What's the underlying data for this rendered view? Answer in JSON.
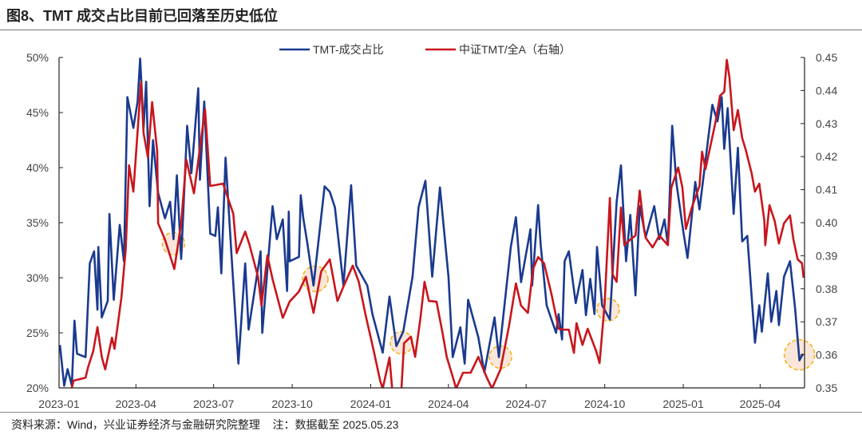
{
  "title": "图8、TMT 成交占比目前已回落至历史低位",
  "footer": "资料来源：Wind，兴业证券经济与金融研究院整理    注：数据截至 2025.05.23",
  "chart_data": {
    "type": "line",
    "title": "图8、TMT 成交占比目前已回落至历史低位",
    "x_unit": "days since 2023-01-01",
    "x_range": [
      0,
      873
    ],
    "x_ticks": [
      {
        "label": "2023-01",
        "day": 0
      },
      {
        "label": "2023-04",
        "day": 90
      },
      {
        "label": "2023-07",
        "day": 181
      },
      {
        "label": "2023-10",
        "day": 273
      },
      {
        "label": "2024-01",
        "day": 365
      },
      {
        "label": "2024-04",
        "day": 456
      },
      {
        "label": "2024-07",
        "day": 547
      },
      {
        "label": "2024-10",
        "day": 639
      },
      {
        "label": "2025-01",
        "day": 731
      },
      {
        "label": "2025-04",
        "day": 821
      }
    ],
    "y_left": {
      "range": [
        20,
        50
      ],
      "ticks": [
        "20%",
        "25%",
        "30%",
        "35%",
        "40%",
        "45%",
        "50%"
      ],
      "values": [
        20,
        25,
        30,
        35,
        40,
        45,
        50
      ]
    },
    "y_right": {
      "range": [
        0.35,
        0.45
      ],
      "ticks": [
        "0.35",
        "0.36",
        "0.37",
        "0.38",
        "0.39",
        "0.40",
        "0.41",
        "0.42",
        "0.43",
        "0.44",
        "0.45"
      ],
      "values": [
        0.35,
        0.36,
        0.37,
        0.38,
        0.39,
        0.4,
        0.41,
        0.42,
        0.43,
        0.44,
        0.45
      ]
    },
    "legend_position": "top-center",
    "series": [
      {
        "name": "TMT-成交占比",
        "axis": "left",
        "color": "#1a3a8f",
        "points": [
          [
            1,
            23.9
          ],
          [
            6,
            20.2
          ],
          [
            10,
            21.7
          ],
          [
            15,
            20.2
          ],
          [
            18,
            26.1
          ],
          [
            21,
            23.1
          ],
          [
            31,
            22.8
          ],
          [
            36,
            31.3
          ],
          [
            41,
            32.4
          ],
          [
            45,
            27.1
          ],
          [
            46,
            32.8
          ],
          [
            50,
            26.4
          ],
          [
            57,
            27.9
          ],
          [
            59,
            35.8
          ],
          [
            64,
            28.0
          ],
          [
            71,
            34.8
          ],
          [
            76,
            31.5
          ],
          [
            80,
            46.4
          ],
          [
            87,
            43.6
          ],
          [
            92,
            46.0
          ],
          [
            95,
            49.9
          ],
          [
            99,
            43.6
          ],
          [
            102,
            47.8
          ],
          [
            106,
            36.5
          ],
          [
            110,
            42.5
          ],
          [
            116,
            37.7
          ],
          [
            124,
            35.4
          ],
          [
            130,
            36.9
          ],
          [
            134,
            33.5
          ],
          [
            138,
            39.3
          ],
          [
            143,
            31.7
          ],
          [
            150,
            43.8
          ],
          [
            155,
            39.5
          ],
          [
            158,
            42.3
          ],
          [
            163,
            47.2
          ],
          [
            165,
            38.9
          ],
          [
            170,
            46.0
          ],
          [
            177,
            34.0
          ],
          [
            183,
            33.8
          ],
          [
            186,
            36.4
          ],
          [
            190,
            30.4
          ],
          [
            195,
            40.9
          ],
          [
            202,
            32.0
          ],
          [
            210,
            22.2
          ],
          [
            218,
            31.3
          ],
          [
            222,
            25.3
          ],
          [
            236,
            32.4
          ],
          [
            238,
            25.0
          ],
          [
            250,
            36.5
          ],
          [
            255,
            33.5
          ],
          [
            262,
            35.3
          ],
          [
            267,
            28.8
          ],
          [
            269,
            36.0
          ],
          [
            270,
            31.5
          ],
          [
            281,
            31.9
          ],
          [
            283,
            37.5
          ],
          [
            286,
            35.4
          ],
          [
            290,
            33.5
          ],
          [
            298,
            29.3
          ],
          [
            311,
            38.3
          ],
          [
            317,
            37.8
          ],
          [
            323,
            36.4
          ],
          [
            333,
            29.3
          ],
          [
            342,
            38.4
          ],
          [
            348,
            31.1
          ],
          [
            361,
            29.3
          ],
          [
            367,
            26.7
          ],
          [
            379,
            23.2
          ],
          [
            387,
            28.3
          ],
          [
            395,
            23.8
          ],
          [
            403,
            25.1
          ],
          [
            414,
            30.1
          ],
          [
            421,
            36.4
          ],
          [
            429,
            38.8
          ],
          [
            437,
            30.1
          ],
          [
            446,
            38.2
          ],
          [
            456,
            30.1
          ],
          [
            461,
            22.8
          ],
          [
            470,
            25.5
          ],
          [
            475,
            22.2
          ],
          [
            479,
            28.0
          ],
          [
            491,
            24.6
          ],
          [
            498,
            21.4
          ],
          [
            510,
            26.4
          ],
          [
            515,
            22.8
          ],
          [
            529,
            32.8
          ],
          [
            535,
            35.5
          ],
          [
            541,
            29.6
          ],
          [
            552,
            34.4
          ],
          [
            554,
            29.3
          ],
          [
            561,
            36.6
          ],
          [
            564,
            33.0
          ],
          [
            571,
            27.5
          ],
          [
            582,
            25.0
          ],
          [
            585,
            26.7
          ],
          [
            589,
            24.4
          ],
          [
            592,
            31.5
          ],
          [
            597,
            32.4
          ],
          [
            605,
            27.7
          ],
          [
            613,
            30.7
          ],
          [
            617,
            26.6
          ],
          [
            622,
            29.9
          ],
          [
            627,
            26.7
          ],
          [
            630,
            32.8
          ],
          [
            636,
            27.5
          ],
          [
            645,
            26.2
          ],
          [
            653,
            36.9
          ],
          [
            658,
            40.2
          ],
          [
            664,
            31.5
          ],
          [
            669,
            35.7
          ],
          [
            675,
            28.4
          ],
          [
            680,
            36.5
          ],
          [
            687,
            33.7
          ],
          [
            697,
            36.5
          ],
          [
            703,
            33.5
          ],
          [
            709,
            35.3
          ],
          [
            713,
            33.0
          ],
          [
            718,
            43.8
          ],
          [
            723,
            38.6
          ],
          [
            731,
            34.2
          ],
          [
            736,
            31.8
          ],
          [
            745,
            38.7
          ],
          [
            750,
            36.2
          ],
          [
            765,
            45.7
          ],
          [
            771,
            44.2
          ],
          [
            776,
            46.4
          ],
          [
            779,
            41.7
          ],
          [
            783,
            45.4
          ],
          [
            790,
            35.8
          ],
          [
            795,
            41.8
          ],
          [
            800,
            33.3
          ],
          [
            806,
            33.8
          ],
          [
            815,
            24.1
          ],
          [
            820,
            27.5
          ],
          [
            823,
            25.1
          ],
          [
            830,
            30.4
          ],
          [
            834,
            26.0
          ],
          [
            840,
            28.8
          ],
          [
            843,
            25.7
          ],
          [
            849,
            30.1
          ],
          [
            856,
            31.5
          ],
          [
            862,
            27.2
          ],
          [
            867,
            22.5
          ],
          [
            871,
            23.1
          ]
        ]
      },
      {
        "name": "中证TMT/全A（右轴）",
        "axis": "right",
        "color": "#c8161d",
        "points": [
          [
            15,
            0.35
          ],
          [
            17,
            0.3522
          ],
          [
            31,
            0.3531
          ],
          [
            34,
            0.3563
          ],
          [
            40,
            0.3611
          ],
          [
            45,
            0.3684
          ],
          [
            50,
            0.3594
          ],
          [
            54,
            0.3556
          ],
          [
            62,
            0.3652
          ],
          [
            65,
            0.3618
          ],
          [
            73,
            0.3773
          ],
          [
            78,
            0.3918
          ],
          [
            82,
            0.4174
          ],
          [
            87,
            0.4094
          ],
          [
            96,
            0.4425
          ],
          [
            99,
            0.4271
          ],
          [
            104,
            0.4198
          ],
          [
            109,
            0.4365
          ],
          [
            115,
            0.4215
          ],
          [
            116,
            0.3998
          ],
          [
            124,
            0.3949
          ],
          [
            135,
            0.386
          ],
          [
            143,
            0.3998
          ],
          [
            149,
            0.4191
          ],
          [
            158,
            0.4089
          ],
          [
            171,
            0.4343
          ],
          [
            177,
            0.4111
          ],
          [
            192,
            0.4118
          ],
          [
            204,
            0.4027
          ],
          [
            208,
            0.3908
          ],
          [
            218,
            0.3973
          ],
          [
            223,
            0.3933
          ],
          [
            233,
            0.3836
          ],
          [
            237,
            0.3749
          ],
          [
            244,
            0.3901
          ],
          [
            250,
            0.3829
          ],
          [
            262,
            0.3712
          ],
          [
            270,
            0.3761
          ],
          [
            281,
            0.3792
          ],
          [
            289,
            0.3836
          ],
          [
            298,
            0.3727
          ],
          [
            307,
            0.3853
          ],
          [
            317,
            0.3889
          ],
          [
            326,
            0.3763
          ],
          [
            334,
            0.3812
          ],
          [
            344,
            0.387
          ],
          [
            351,
            0.3821
          ],
          [
            359,
            0.372
          ],
          [
            368,
            0.3618
          ],
          [
            376,
            0.3522
          ],
          [
            379,
            0.3498
          ],
          [
            384,
            0.3556
          ],
          [
            387,
            0.3592
          ],
          [
            390,
            0.3498
          ],
          [
            401,
            0.3498
          ],
          [
            404,
            0.3635
          ],
          [
            412,
            0.3655
          ],
          [
            417,
            0.3594
          ],
          [
            423,
            0.3708
          ],
          [
            428,
            0.3821
          ],
          [
            433,
            0.3763
          ],
          [
            442,
            0.3761
          ],
          [
            449,
            0.3667
          ],
          [
            454,
            0.3594
          ],
          [
            460,
            0.3543
          ],
          [
            465,
            0.3498
          ],
          [
            473,
            0.3546
          ],
          [
            482,
            0.3546
          ],
          [
            491,
            0.3594
          ],
          [
            501,
            0.3531
          ],
          [
            507,
            0.3498
          ],
          [
            517,
            0.3556
          ],
          [
            527,
            0.3688
          ],
          [
            535,
            0.3816
          ],
          [
            541,
            0.3749
          ],
          [
            549,
            0.3727
          ],
          [
            555,
            0.386
          ],
          [
            561,
            0.3896
          ],
          [
            568,
            0.3877
          ],
          [
            577,
            0.378
          ],
          [
            585,
            0.3679
          ],
          [
            592,
            0.3676
          ],
          [
            597,
            0.3676
          ],
          [
            603,
            0.3606
          ],
          [
            606,
            0.3696
          ],
          [
            613,
            0.363
          ],
          [
            619,
            0.3679
          ],
          [
            629,
            0.3611
          ],
          [
            633,
            0.3575
          ],
          [
            639,
            0.3756
          ],
          [
            645,
            0.4075
          ],
          [
            648,
            0.3845
          ],
          [
            653,
            0.3821
          ],
          [
            658,
            0.4046
          ],
          [
            662,
            0.3932
          ],
          [
            669,
            0.3949
          ],
          [
            675,
            0.3961
          ],
          [
            680,
            0.4097
          ],
          [
            685,
            0.3981
          ],
          [
            687,
            0.3954
          ],
          [
            695,
            0.3925
          ],
          [
            703,
            0.3961
          ],
          [
            713,
            0.3932
          ],
          [
            717,
            0.4106
          ],
          [
            725,
            0.4167
          ],
          [
            730,
            0.4106
          ],
          [
            734,
            0.3981
          ],
          [
            741,
            0.4046
          ],
          [
            750,
            0.4111
          ],
          [
            753,
            0.4215
          ],
          [
            757,
            0.4162
          ],
          [
            769,
            0.4307
          ],
          [
            774,
            0.4384
          ],
          [
            779,
            0.4396
          ],
          [
            782,
            0.4493
          ],
          [
            785,
            0.444
          ],
          [
            790,
            0.428
          ],
          [
            795,
            0.4341
          ],
          [
            800,
            0.4256
          ],
          [
            804,
            0.4222
          ],
          [
            811,
            0.415
          ],
          [
            815,
            0.4094
          ],
          [
            820,
            0.4118
          ],
          [
            826,
            0.4005
          ],
          [
            827,
            0.3932
          ],
          [
            832,
            0.4053
          ],
          [
            838,
            0.4005
          ],
          [
            843,
            0.3937
          ],
          [
            849,
            0.3998
          ],
          [
            856,
            0.4022
          ],
          [
            860,
            0.3949
          ],
          [
            865,
            0.3889
          ],
          [
            870,
            0.3877
          ],
          [
            872,
            0.3833
          ]
        ]
      }
    ],
    "highlights": [
      [
        134,
        33.1
      ],
      [
        300,
        29.9
      ],
      [
        401,
        24.1
      ],
      [
        517,
        22.8
      ],
      [
        643,
        27.1
      ],
      [
        867,
        23.0
      ]
    ]
  }
}
